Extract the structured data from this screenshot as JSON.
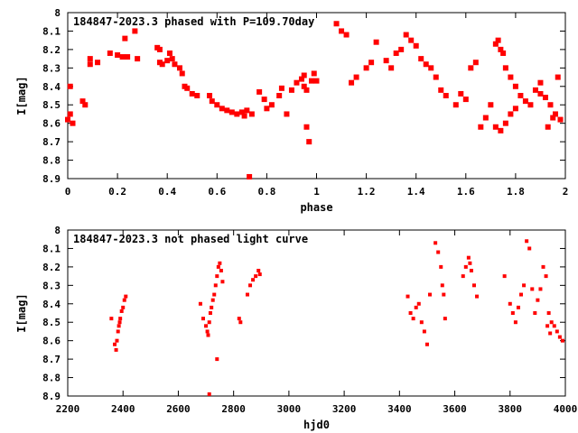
{
  "chart_data": [
    {
      "type": "scatter",
      "title": "184847-2023.3 phased with P=109.70day",
      "xlabel": "phase",
      "ylabel": "I[mag]",
      "xlim": [
        0,
        2
      ],
      "ylim": [
        8.9,
        8
      ],
      "y_inverted": true,
      "xticks": [
        "0",
        "0.2",
        "0.4",
        "0.6",
        "0.8",
        "1",
        "1.2",
        "1.4",
        "1.6",
        "1.8",
        "2"
      ],
      "yticks": [
        "8",
        "8.1",
        "8.2",
        "8.3",
        "8.4",
        "8.5",
        "8.6",
        "8.7",
        "8.8",
        "8.9"
      ],
      "marker_color": "#ff0000",
      "grid": false,
      "series": [
        {
          "x": [
            0.0,
            0.01,
            0.01,
            0.02,
            0.06,
            0.07,
            0.09,
            0.09,
            0.12,
            0.17,
            0.2,
            0.22,
            0.23,
            0.24,
            0.27,
            0.28,
            0.36,
            0.37,
            0.37,
            0.38,
            0.4,
            0.41,
            0.42,
            0.43,
            0.45,
            0.46,
            0.47,
            0.48,
            0.5,
            0.52,
            0.57,
            0.58,
            0.6,
            0.62,
            0.64,
            0.66,
            0.68,
            0.7,
            0.71,
            0.72,
            0.73,
            0.74,
            0.77,
            0.79,
            0.8,
            0.82,
            0.85,
            0.86,
            0.88,
            0.9,
            0.92,
            0.94,
            0.95,
            0.96,
            0.97,
            0.98,
            0.99,
            1.0,
            0.95,
            0.96,
            1.08,
            1.1,
            1.12,
            1.14,
            1.16,
            1.2,
            1.22,
            1.24,
            1.28,
            1.3,
            1.32,
            1.34,
            1.36,
            1.38,
            1.4,
            1.42,
            1.44,
            1.46,
            1.48,
            1.5,
            1.52,
            1.56,
            1.58,
            1.6,
            1.62,
            1.64,
            1.66,
            1.68,
            1.7,
            1.72,
            1.73,
            1.74,
            1.75,
            1.76,
            1.78,
            1.8,
            1.82,
            1.84,
            1.86,
            1.88,
            1.9,
            1.92,
            1.94,
            1.96,
            1.98,
            1.72,
            1.74,
            1.76,
            1.78,
            1.8,
            1.9,
            1.93,
            1.95,
            1.97
          ],
          "y": [
            8.58,
            8.55,
            8.4,
            8.6,
            8.48,
            8.5,
            8.25,
            8.28,
            8.27,
            8.22,
            8.23,
            8.24,
            8.14,
            8.24,
            8.1,
            8.25,
            8.19,
            8.2,
            8.27,
            8.28,
            8.26,
            8.22,
            8.25,
            8.28,
            8.3,
            8.33,
            8.4,
            8.41,
            8.44,
            8.45,
            8.45,
            8.48,
            8.5,
            8.52,
            8.53,
            8.54,
            8.55,
            8.54,
            8.56,
            8.53,
            8.89,
            8.55,
            8.43,
            8.47,
            8.52,
            8.5,
            8.45,
            8.41,
            8.55,
            8.42,
            8.38,
            8.36,
            8.34,
            8.62,
            8.7,
            8.37,
            8.33,
            8.37,
            8.4,
            8.42,
            8.06,
            8.1,
            8.12,
            8.38,
            8.35,
            8.3,
            8.27,
            8.16,
            8.26,
            8.3,
            8.22,
            8.2,
            8.12,
            8.15,
            8.18,
            8.25,
            8.28,
            8.3,
            8.35,
            8.42,
            8.45,
            8.5,
            8.44,
            8.47,
            8.3,
            8.27,
            8.62,
            8.57,
            8.5,
            8.17,
            8.15,
            8.2,
            8.22,
            8.3,
            8.35,
            8.4,
            8.45,
            8.48,
            8.5,
            8.42,
            8.44,
            8.46,
            8.5,
            8.55,
            8.58,
            8.62,
            8.64,
            8.6,
            8.55,
            8.52,
            8.38,
            8.62,
            8.57,
            8.35
          ]
        }
      ]
    },
    {
      "type": "scatter",
      "title": "184847-2023.3 not phased light curve",
      "xlabel": "hjd0",
      "ylabel": "I[mag]",
      "xlim": [
        2200,
        4000
      ],
      "ylim": [
        8.9,
        8
      ],
      "y_inverted": true,
      "xticks": [
        "2200",
        "2400",
        "2600",
        "2800",
        "3000",
        "3200",
        "3400",
        "3600",
        "3800",
        "4000"
      ],
      "yticks": [
        "8",
        "8.1",
        "8.2",
        "8.3",
        "8.4",
        "8.5",
        "8.6",
        "8.7",
        "8.8",
        "8.9"
      ],
      "marker_color": "#ff0000",
      "grid": false,
      "series": [
        {
          "x": [
            2358,
            2370,
            2375,
            2378,
            2382,
            2385,
            2388,
            2390,
            2395,
            2400,
            2405,
            2410,
            2680,
            2690,
            2700,
            2705,
            2708,
            2712,
            2716,
            2720,
            2725,
            2730,
            2735,
            2740,
            2745,
            2750,
            2755,
            2760,
            2740,
            2712,
            2820,
            2825,
            2850,
            2860,
            2870,
            2880,
            2890,
            2895,
            3430,
            3440,
            3450,
            3460,
            3470,
            3480,
            3490,
            3500,
            3510,
            3530,
            3540,
            3550,
            3555,
            3560,
            3565,
            3630,
            3640,
            3650,
            3655,
            3660,
            3670,
            3680,
            3780,
            3800,
            3810,
            3820,
            3830,
            3840,
            3850,
            3860,
            3870,
            3880,
            3890,
            3900,
            3910,
            3920,
            3930,
            3940,
            3950,
            3960,
            3970,
            3980,
            3990,
            3945,
            3935
          ],
          "y": [
            8.48,
            8.62,
            8.65,
            8.6,
            8.55,
            8.52,
            8.5,
            8.48,
            8.44,
            8.42,
            8.38,
            8.36,
            8.4,
            8.48,
            8.52,
            8.55,
            8.57,
            8.5,
            8.45,
            8.42,
            8.38,
            8.35,
            8.3,
            8.25,
            8.2,
            8.18,
            8.22,
            8.28,
            8.7,
            8.89,
            8.48,
            8.5,
            8.35,
            8.3,
            8.27,
            8.25,
            8.22,
            8.24,
            8.36,
            8.45,
            8.48,
            8.42,
            8.4,
            8.5,
            8.55,
            8.62,
            8.35,
            8.07,
            8.12,
            8.2,
            8.3,
            8.35,
            8.48,
            8.25,
            8.2,
            8.15,
            8.18,
            8.22,
            8.3,
            8.36,
            8.25,
            8.4,
            8.45,
            8.5,
            8.42,
            8.35,
            8.3,
            8.06,
            8.1,
            8.32,
            8.45,
            8.38,
            8.32,
            8.2,
            8.25,
            8.45,
            8.5,
            8.52,
            8.55,
            8.58,
            8.6,
            8.56,
            8.52
          ]
        }
      ]
    }
  ]
}
